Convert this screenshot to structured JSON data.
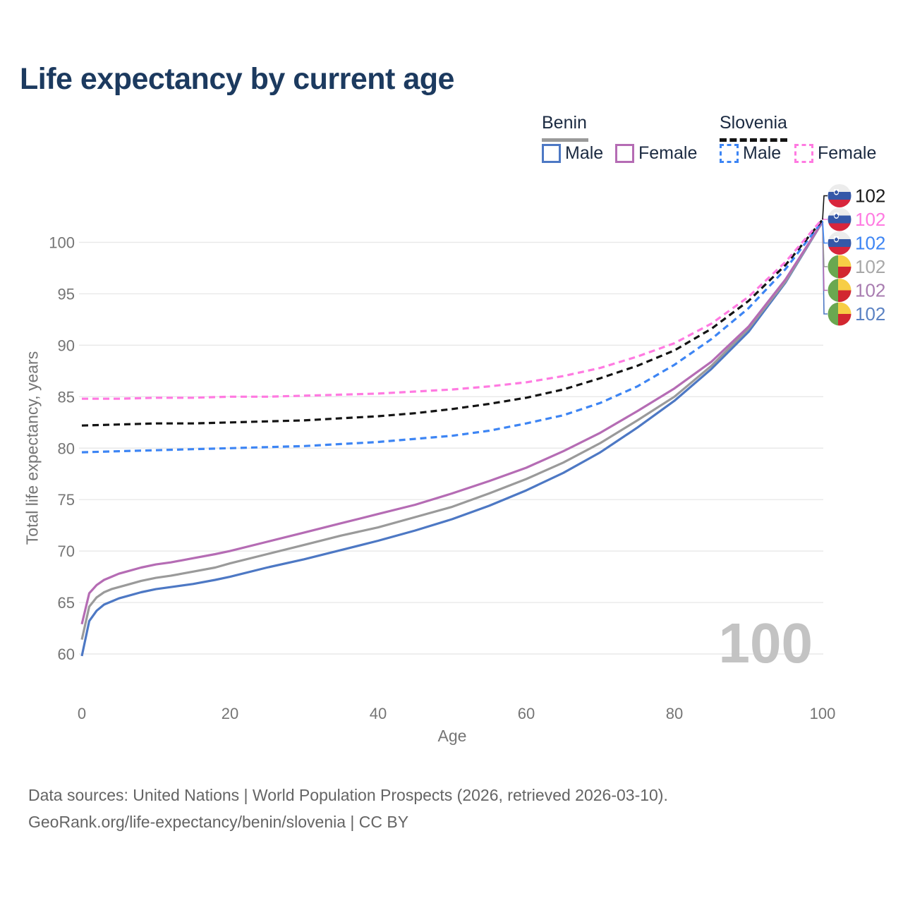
{
  "title": "Life expectancy by current age",
  "legend": {
    "groups": [
      {
        "name": "Benin",
        "line_style": "solid",
        "rule_color": "#9a9a9a",
        "items": [
          {
            "label": "Male",
            "color": "#4d78c4"
          },
          {
            "label": "Female",
            "color": "#b56cb4"
          }
        ]
      },
      {
        "name": "Slovenia",
        "line_style": "dashed",
        "rule_color": "#141414",
        "items": [
          {
            "label": "Male",
            "color": "#3d85f4"
          },
          {
            "label": "Female",
            "color": "#ff7ae1"
          }
        ]
      }
    ]
  },
  "chart_data": {
    "type": "line",
    "title": "Life expectancy by current age",
    "xlabel": "Age",
    "ylabel": "Total life expectancy, years",
    "xlim": [
      0,
      100
    ],
    "ylim": [
      58.5,
      103.5
    ],
    "xticks": [
      0,
      20,
      40,
      60,
      80,
      100
    ],
    "yticks": [
      60,
      65,
      70,
      75,
      80,
      85,
      90,
      95,
      100
    ],
    "grid": "horizontal-only",
    "legend_position": "top-right",
    "age_counter_watermark": "100",
    "series": [
      {
        "id": "slovenia-overall",
        "country": "Slovenia",
        "sex": "all",
        "line": "dashed",
        "color": "#141414",
        "label_color": "#1a1a1a",
        "flag": "slovenia",
        "end_label": "102",
        "points": [
          [
            0,
            82.2
          ],
          [
            5,
            82.3
          ],
          [
            10,
            82.4
          ],
          [
            15,
            82.4
          ],
          [
            20,
            82.5
          ],
          [
            25,
            82.6
          ],
          [
            30,
            82.7
          ],
          [
            35,
            82.9
          ],
          [
            40,
            83.1
          ],
          [
            45,
            83.4
          ],
          [
            50,
            83.8
          ],
          [
            55,
            84.3
          ],
          [
            60,
            84.9
          ],
          [
            65,
            85.7
          ],
          [
            70,
            86.8
          ],
          [
            75,
            88.0
          ],
          [
            80,
            89.5
          ],
          [
            85,
            91.6
          ],
          [
            90,
            94.3
          ],
          [
            95,
            97.8
          ],
          [
            100,
            102.2
          ]
        ]
      },
      {
        "id": "slovenia-female",
        "country": "Slovenia",
        "sex": "female",
        "line": "dashed",
        "color": "#ff7ae1",
        "label_color": "#ff7ae1",
        "flag": "slovenia",
        "end_label": "102",
        "points": [
          [
            0,
            84.8
          ],
          [
            5,
            84.8
          ],
          [
            10,
            84.9
          ],
          [
            15,
            84.9
          ],
          [
            20,
            85.0
          ],
          [
            25,
            85.0
          ],
          [
            30,
            85.1
          ],
          [
            35,
            85.2
          ],
          [
            40,
            85.3
          ],
          [
            45,
            85.5
          ],
          [
            50,
            85.7
          ],
          [
            55,
            86.0
          ],
          [
            60,
            86.4
          ],
          [
            65,
            87.0
          ],
          [
            70,
            87.8
          ],
          [
            75,
            88.9
          ],
          [
            80,
            90.2
          ],
          [
            85,
            92.1
          ],
          [
            90,
            94.7
          ],
          [
            95,
            98.1
          ],
          [
            100,
            102.3
          ]
        ]
      },
      {
        "id": "slovenia-male",
        "country": "Slovenia",
        "sex": "male",
        "line": "dashed",
        "color": "#3d85f4",
        "label_color": "#3d85f4",
        "flag": "slovenia",
        "end_label": "102",
        "points": [
          [
            0,
            79.6
          ],
          [
            5,
            79.7
          ],
          [
            10,
            79.8
          ],
          [
            15,
            79.9
          ],
          [
            20,
            80.0
          ],
          [
            25,
            80.1
          ],
          [
            30,
            80.2
          ],
          [
            35,
            80.4
          ],
          [
            40,
            80.6
          ],
          [
            45,
            80.9
          ],
          [
            50,
            81.2
          ],
          [
            55,
            81.7
          ],
          [
            60,
            82.4
          ],
          [
            65,
            83.2
          ],
          [
            70,
            84.4
          ],
          [
            75,
            86.0
          ],
          [
            80,
            88.1
          ],
          [
            85,
            90.6
          ],
          [
            90,
            93.6
          ],
          [
            95,
            97.4
          ],
          [
            100,
            102.1
          ]
        ]
      },
      {
        "id": "benin-overall",
        "country": "Benin",
        "sex": "all",
        "line": "solid",
        "color": "#9a9a9a",
        "label_color": "#a8a8a8",
        "flag": "benin",
        "end_label": "102",
        "points": [
          [
            0,
            61.4
          ],
          [
            1,
            64.6
          ],
          [
            2,
            65.5
          ],
          [
            3,
            66.0
          ],
          [
            4,
            66.3
          ],
          [
            5,
            66.5
          ],
          [
            6,
            66.7
          ],
          [
            8,
            67.1
          ],
          [
            10,
            67.4
          ],
          [
            12,
            67.6
          ],
          [
            15,
            68.0
          ],
          [
            18,
            68.4
          ],
          [
            20,
            68.8
          ],
          [
            25,
            69.7
          ],
          [
            30,
            70.6
          ],
          [
            35,
            71.5
          ],
          [
            40,
            72.3
          ],
          [
            45,
            73.3
          ],
          [
            50,
            74.3
          ],
          [
            55,
            75.6
          ],
          [
            60,
            77.0
          ],
          [
            65,
            78.6
          ],
          [
            70,
            80.5
          ],
          [
            75,
            82.7
          ],
          [
            80,
            85.0
          ],
          [
            85,
            88.0
          ],
          [
            90,
            91.6
          ],
          [
            95,
            96.2
          ],
          [
            100,
            102.0
          ]
        ]
      },
      {
        "id": "benin-female",
        "country": "Benin",
        "sex": "female",
        "line": "solid",
        "color": "#b56cb4",
        "label_color": "#a87cb0",
        "flag": "benin",
        "end_label": "102",
        "points": [
          [
            0,
            62.9
          ],
          [
            1,
            65.9
          ],
          [
            2,
            66.7
          ],
          [
            3,
            67.2
          ],
          [
            4,
            67.5
          ],
          [
            5,
            67.8
          ],
          [
            6,
            68.0
          ],
          [
            8,
            68.4
          ],
          [
            10,
            68.7
          ],
          [
            12,
            68.9
          ],
          [
            15,
            69.3
          ],
          [
            18,
            69.7
          ],
          [
            20,
            70.0
          ],
          [
            25,
            70.9
          ],
          [
            30,
            71.8
          ],
          [
            35,
            72.7
          ],
          [
            40,
            73.6
          ],
          [
            45,
            74.5
          ],
          [
            50,
            75.6
          ],
          [
            55,
            76.8
          ],
          [
            60,
            78.1
          ],
          [
            65,
            79.7
          ],
          [
            70,
            81.5
          ],
          [
            75,
            83.6
          ],
          [
            80,
            85.8
          ],
          [
            85,
            88.4
          ],
          [
            90,
            91.8
          ],
          [
            95,
            96.4
          ],
          [
            100,
            102.0
          ]
        ]
      },
      {
        "id": "benin-male",
        "country": "Benin",
        "sex": "male",
        "line": "solid",
        "color": "#4d78c4",
        "label_color": "#5b82c3",
        "flag": "benin",
        "end_label": "102",
        "points": [
          [
            0,
            59.8
          ],
          [
            1,
            63.2
          ],
          [
            2,
            64.2
          ],
          [
            3,
            64.8
          ],
          [
            4,
            65.1
          ],
          [
            5,
            65.4
          ],
          [
            6,
            65.6
          ],
          [
            8,
            66.0
          ],
          [
            10,
            66.3
          ],
          [
            12,
            66.5
          ],
          [
            15,
            66.8
          ],
          [
            18,
            67.2
          ],
          [
            20,
            67.5
          ],
          [
            25,
            68.4
          ],
          [
            30,
            69.2
          ],
          [
            35,
            70.1
          ],
          [
            40,
            71.0
          ],
          [
            45,
            72.0
          ],
          [
            50,
            73.1
          ],
          [
            55,
            74.4
          ],
          [
            60,
            75.9
          ],
          [
            65,
            77.6
          ],
          [
            70,
            79.6
          ],
          [
            75,
            82.0
          ],
          [
            80,
            84.6
          ],
          [
            85,
            87.7
          ],
          [
            90,
            91.3
          ],
          [
            95,
            96.1
          ],
          [
            100,
            102.0
          ]
        ]
      }
    ]
  },
  "flags": {
    "slovenia": {
      "white": "#ececec",
      "blue": "#3558a8",
      "red": "#d8253c"
    },
    "benin": {
      "green": "#6aa850",
      "yellow": "#f7ce46",
      "red": "#d22730"
    }
  },
  "footer": {
    "line1": "Data sources: United Nations | World Population Prospects (2026, retrieved 2026-03-10).",
    "line2": "GeoRank.org/life-expectancy/benin/slovenia | CC BY"
  }
}
